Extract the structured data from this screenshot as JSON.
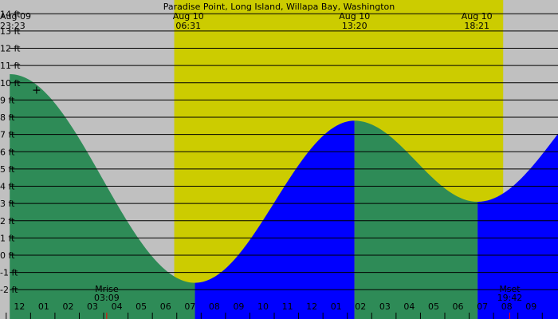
{
  "chart_data": {
    "type": "area",
    "title": "Paradise Point, Long Island, Willapa Bay, Washington",
    "xlabel": "",
    "ylabel": "",
    "x_unit": "hours",
    "xlim": [
      -0.6,
      22.3
    ],
    "ylim": [
      -3.7,
      14.8
    ],
    "y_ticks": [
      14,
      13,
      12,
      11,
      10,
      9,
      8,
      7,
      6,
      5,
      4,
      3,
      2,
      1,
      0,
      -1,
      -2
    ],
    "y_tick_labels": [
      "14 ft",
      "13 ft",
      "12 ft",
      "11 ft",
      "10 ft",
      "9 ft",
      "8 ft",
      "7 ft",
      "6 ft",
      "5 ft",
      "4 ft",
      "3 ft",
      "2 ft",
      "1 ft",
      "0 ft",
      "-1 ft",
      "-2 ft"
    ],
    "hour_tick_labels": [
      "11",
      "12",
      "01",
      "02",
      "03",
      "04",
      "05",
      "06",
      "07",
      "08",
      "09",
      "10",
      "11",
      "12",
      "01",
      "02",
      "03",
      "04",
      "05",
      "06",
      "07",
      "08",
      "09"
    ],
    "top_labels": [
      {
        "date": "Aug 09",
        "time": "23:23",
        "x": 0
      },
      {
        "date": "Aug 10",
        "time": "06:31",
        "x": 7.13
      },
      {
        "date": "Aug 10",
        "time": "13:20",
        "x": 13.95
      },
      {
        "date": "Aug 10",
        "time": "18:21",
        "x": 18.97
      }
    ],
    "daylight": {
      "start": 6.55,
      "end": 20.05
    },
    "tide_extremes": [
      {
        "x": -0.2,
        "y": 10.5
      },
      {
        "x": 7.4,
        "y": -1.6
      },
      {
        "x": 13.95,
        "y": 7.8
      },
      {
        "x": 19.0,
        "y": 3.1
      },
      {
        "x": 25.5,
        "y": 10.8
      }
    ],
    "colors": {
      "night": "#c0c0c0",
      "day": "#cccc00",
      "falling": "#2e8b57",
      "rising": "#0000ff"
    },
    "moon_events": [
      {
        "label": "Mrise",
        "time": "03:09",
        "x": 3.78
      },
      {
        "label": "Mset",
        "time": "19:42",
        "x": 20.32
      }
    ],
    "marker": {
      "glyph": "+",
      "x": 0.9,
      "y": 9.6
    }
  }
}
